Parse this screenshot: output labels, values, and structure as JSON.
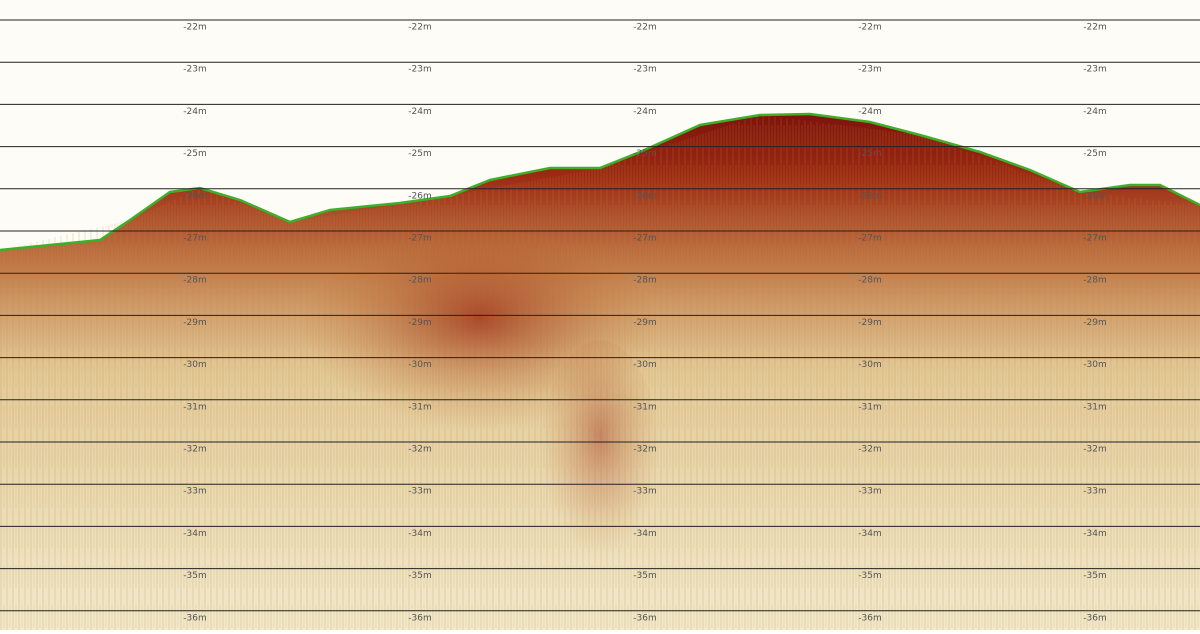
{
  "depth_lines": [
    "-22m",
    "-23m",
    "-24m",
    "-25m",
    "-26m",
    "-27m",
    "-28m",
    "-29m",
    "-30m",
    "-31m",
    "-32m",
    "-33m",
    "-34m",
    "-35m",
    "-36m"
  ]
}
